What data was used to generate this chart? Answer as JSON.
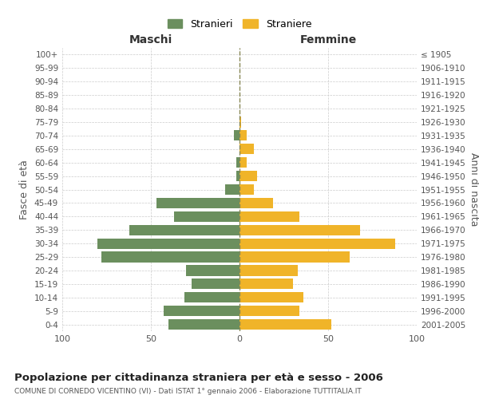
{
  "age_groups": [
    "0-4",
    "5-9",
    "10-14",
    "15-19",
    "20-24",
    "25-29",
    "30-34",
    "35-39",
    "40-44",
    "45-49",
    "50-54",
    "55-59",
    "60-64",
    "65-69",
    "70-74",
    "75-79",
    "80-84",
    "85-89",
    "90-94",
    "95-99",
    "100+"
  ],
  "birth_years": [
    "2001-2005",
    "1996-2000",
    "1991-1995",
    "1986-1990",
    "1981-1985",
    "1976-1980",
    "1971-1975",
    "1966-1970",
    "1961-1965",
    "1956-1960",
    "1951-1955",
    "1946-1950",
    "1941-1945",
    "1936-1940",
    "1931-1935",
    "1926-1930",
    "1921-1925",
    "1916-1920",
    "1911-1915",
    "1906-1910",
    "≤ 1905"
  ],
  "males": [
    40,
    43,
    31,
    27,
    30,
    78,
    80,
    62,
    37,
    47,
    8,
    2,
    2,
    0,
    3,
    0,
    0,
    0,
    0,
    0,
    0
  ],
  "females": [
    52,
    34,
    36,
    30,
    33,
    62,
    88,
    68,
    34,
    19,
    8,
    10,
    4,
    8,
    4,
    1,
    0,
    0,
    0,
    0,
    0
  ],
  "male_color": "#6b8f5e",
  "female_color": "#f0b429",
  "background_color": "#ffffff",
  "grid_color": "#cccccc",
  "title": "Popolazione per cittadinanza straniera per età e sesso - 2006",
  "subtitle": "COMUNE DI CORNEDO VICENTINO (VI) - Dati ISTAT 1° gennaio 2006 - Elaborazione TUTTITALIA.IT",
  "ylabel_left": "Fasce di età",
  "ylabel_right": "Anni di nascita",
  "xlabel_maschi": "Maschi",
  "xlabel_femmine": "Femmine",
  "legend_stranieri": "Stranieri",
  "legend_straniere": "Straniere",
  "xlim": 100
}
